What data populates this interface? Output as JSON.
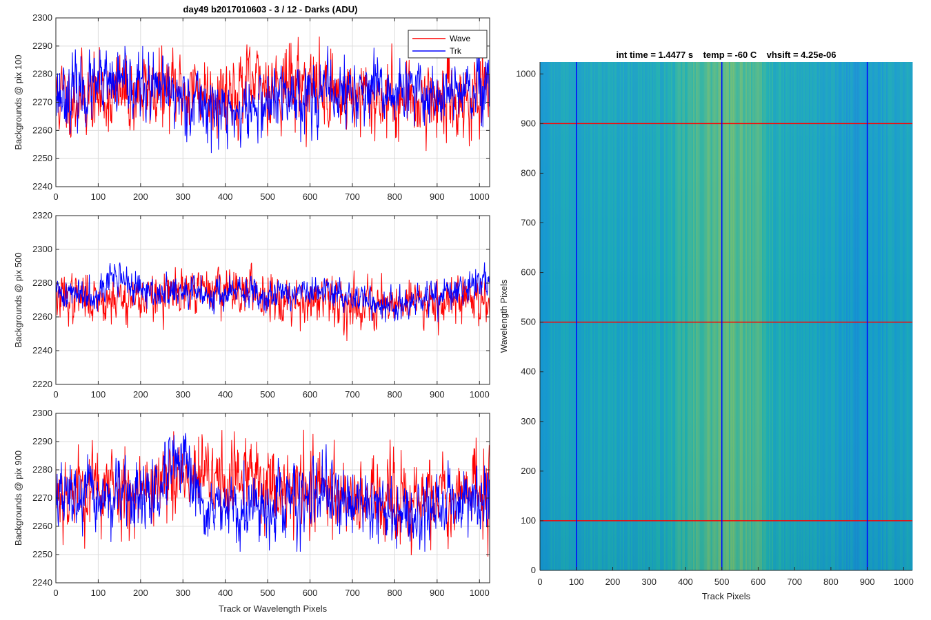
{
  "figure": {
    "title": "day49 b2017010603 - 3 / 12 - Darks (ADU)",
    "right_title": "int time = 1.4477 s    temp = -60 C    vhsift = 4.25e-06"
  },
  "chart_data": [
    {
      "type": "line",
      "title": "day49 b2017010603 - 3 / 12 - Darks (ADU)",
      "xlabel": "",
      "ylabel": "Backgrounds @ pix 100",
      "xlim": [
        0,
        1024
      ],
      "ylim": [
        2240,
        2300
      ],
      "xticks": [
        0,
        100,
        200,
        300,
        400,
        500,
        600,
        700,
        800,
        900,
        1000
      ],
      "yticks": [
        2240,
        2250,
        2260,
        2270,
        2280,
        2290,
        2300
      ],
      "grid": true,
      "legend": "top-right",
      "series": [
        {
          "name": "Wave",
          "color": "#ff0000",
          "mean": 2271,
          "noise": 6.5,
          "bumps": [
            [
              300,
              150,
              3
            ],
            [
              560,
              80,
              5
            ]
          ],
          "min": 2247,
          "max": 2299,
          "seed": 11
        },
        {
          "name": "Trk",
          "color": "#0000ff",
          "mean": 2273,
          "noise": 5.5,
          "bumps": [
            [
              420,
              60,
              -7
            ],
            [
              150,
              60,
              3
            ]
          ],
          "min": 2250,
          "max": 2290,
          "seed": 23
        }
      ]
    },
    {
      "type": "line",
      "xlabel": "",
      "ylabel": "Backgrounds @ pix 500",
      "xlim": [
        0,
        1024
      ],
      "ylim": [
        2220,
        2320
      ],
      "xticks": [
        0,
        100,
        200,
        300,
        400,
        500,
        600,
        700,
        800,
        900,
        1000
      ],
      "yticks": [
        2220,
        2240,
        2260,
        2280,
        2300,
        2320
      ],
      "grid": true,
      "series": [
        {
          "name": "Wave",
          "color": "#ff0000",
          "mean": 2271,
          "noise": 6.5,
          "bumps": [
            [
              400,
              80,
              6
            ],
            [
              700,
              100,
              -3
            ]
          ],
          "min": 2239,
          "max": 2292,
          "seed": 37
        },
        {
          "name": "Trk",
          "color": "#0000ff",
          "mean": 2274,
          "noise": 4.5,
          "bumps": [
            [
              145,
              25,
              10
            ],
            [
              800,
              60,
              -8
            ],
            [
              1010,
              30,
              8
            ]
          ],
          "min": 2245,
          "max": 2301,
          "seed": 41
        }
      ]
    },
    {
      "type": "line",
      "xlabel": "Track or Wavelength Pixels",
      "ylabel": "Backgrounds @ pix 900",
      "xlim": [
        0,
        1024
      ],
      "ylim": [
        2240,
        2300
      ],
      "xticks": [
        0,
        100,
        200,
        300,
        400,
        500,
        600,
        700,
        800,
        900,
        1000
      ],
      "yticks": [
        2240,
        2250,
        2260,
        2270,
        2280,
        2290,
        2300
      ],
      "grid": true,
      "series": [
        {
          "name": "Wave",
          "color": "#ff0000",
          "mean": 2273,
          "noise": 7,
          "bumps": [
            [
              400,
              120,
              4
            ],
            [
              800,
              80,
              -5
            ]
          ],
          "min": 2247,
          "max": 2297,
          "seed": 53
        },
        {
          "name": "Trk",
          "color": "#0000ff",
          "mean": 2270,
          "noise": 5.5,
          "bumps": [
            [
              290,
              25,
              12
            ],
            [
              420,
              60,
              -6
            ],
            [
              830,
              50,
              -7
            ]
          ],
          "min": 2251,
          "max": 2293,
          "seed": 67
        }
      ]
    },
    {
      "type": "heatmap",
      "title": "int time = 1.4477 s    temp = -60 C    vhsift = 4.25e-06",
      "xlabel": "Track Pixels",
      "ylabel": "Wavelength Pixels",
      "xlim": [
        0,
        1024
      ],
      "ylim": [
        0,
        1024
      ],
      "xticks": [
        0,
        100,
        200,
        300,
        400,
        500,
        600,
        700,
        800,
        900,
        1000
      ],
      "yticks": [
        0,
        100,
        200,
        300,
        400,
        500,
        600,
        700,
        800,
        900,
        1000
      ],
      "colormap": "parula",
      "vertical_lines": [
        {
          "x": 100,
          "color": "#0000ff"
        },
        {
          "x": 500,
          "color": "#0000ff"
        },
        {
          "x": 900,
          "color": "#0000ff"
        }
      ],
      "horizontal_lines": [
        {
          "y": 100,
          "color": "#ff0000"
        },
        {
          "y": 500,
          "color": "#ff0000"
        },
        {
          "y": 900,
          "color": "#ff0000"
        }
      ]
    }
  ]
}
